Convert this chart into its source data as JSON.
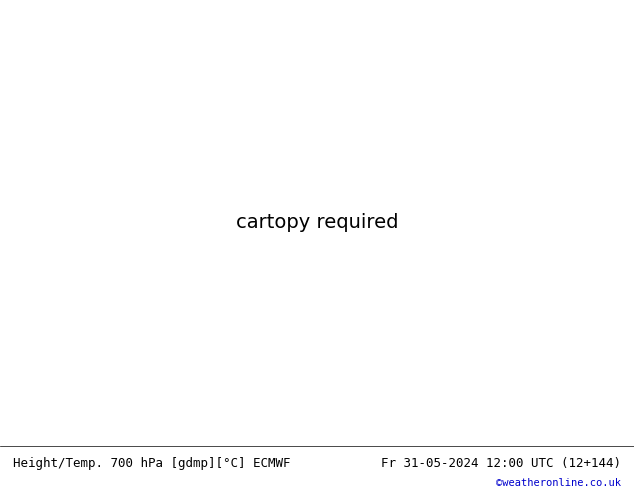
{
  "title_left": "Height/Temp. 700 hPa [gdmp][°C] ECMWF",
  "title_right": "Fr 31-05-2024 12:00 UTC (12+144)",
  "credit": "©weatheronline.co.uk",
  "sea_color": "#c8c8c8",
  "land_color": "#b8dca0",
  "mountain_color": "#a8a8a8",
  "bottom_bar_color": "#ffffff",
  "label_font_size": 9,
  "credit_color": "#0000cc",
  "text_color": "#000000",
  "lon_min": -30,
  "lon_max": 45,
  "lat_min": 30,
  "lat_max": 75
}
